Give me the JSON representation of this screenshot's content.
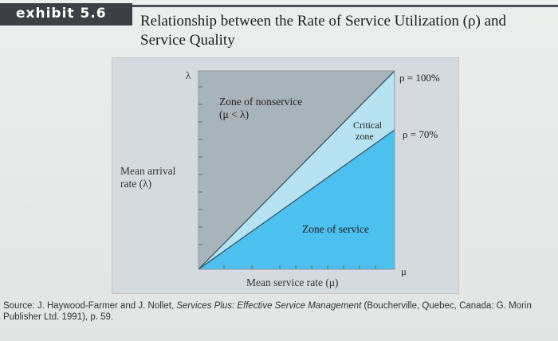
{
  "exhibit": {
    "label": "exhibit 5.6"
  },
  "title": "Relationship between the Rate of Service Utilization (ρ) and Service Quality",
  "diagram": {
    "y_axis_symbol": "λ",
    "y_axis_label_line1": "Mean arrival",
    "y_axis_label_line2": "rate (λ)",
    "x_axis_label": "Mean service rate (μ)",
    "x_axis_symbol": "μ",
    "zone_nonservice_line1": "Zone of nonservice",
    "zone_nonservice_line2": "(μ < λ)",
    "zone_critical_line1": "Critical",
    "zone_critical_line2": "zone",
    "zone_service": "Zone of service",
    "rho_100_label": "ρ = 100%",
    "rho_70_label": "ρ = 70%",
    "colors": {
      "nonservice": "#a9b3ba",
      "critical": "#b6e2f1",
      "service": "#4cc0ee",
      "line": "#2f5a73"
    }
  },
  "source": {
    "prefix": "Source: J. Haywood-Farmer and J. Nollet, ",
    "book": "Services Plus: Effective Service Management",
    "suffix": " (Boucherville, Quebec, Canada: G. Morin Publisher Ltd. 1991), p. 59."
  }
}
